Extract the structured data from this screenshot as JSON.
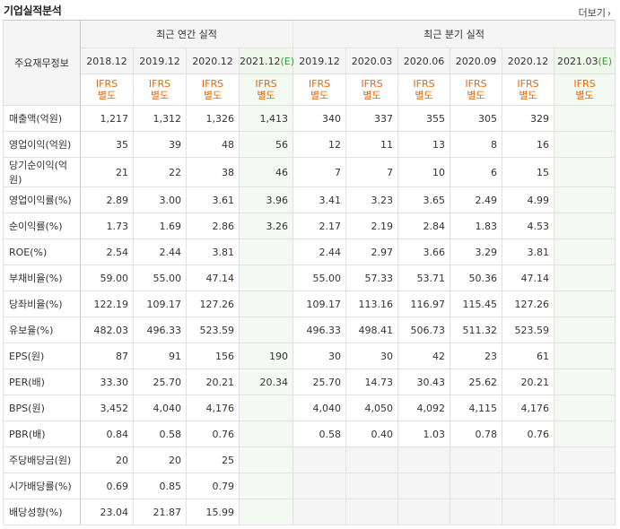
{
  "title": "기업실적분석",
  "more_label": "더보기",
  "header": {
    "row_label": "주요재무정보",
    "annual_group": "최근 연간 실적",
    "quarter_group": "최근 분기 실적",
    "annual_periods": [
      "2018.12",
      "2019.12",
      "2020.12",
      "2021.12"
    ],
    "forecast_tag": "(E)",
    "quarter_periods": [
      "2019.12",
      "2020.03",
      "2020.06",
      "2020.09",
      "2020.12",
      "2021.03"
    ],
    "acct_top": "IFRS",
    "acct_bottom": "별도"
  },
  "rows": [
    {
      "label": "매출액(억원)",
      "annual": [
        "1,217",
        "1,312",
        "1,326",
        "1,413"
      ],
      "quarter": [
        "340",
        "337",
        "355",
        "305",
        "329",
        ""
      ]
    },
    {
      "label": "영업이익(억원)",
      "annual": [
        "35",
        "39",
        "48",
        "56"
      ],
      "quarter": [
        "12",
        "11",
        "13",
        "8",
        "16",
        ""
      ]
    },
    {
      "label": "당기순이익(억원)",
      "annual": [
        "21",
        "22",
        "38",
        "46"
      ],
      "quarter": [
        "7",
        "7",
        "10",
        "6",
        "15",
        ""
      ]
    },
    {
      "label": "영업이익률(%)",
      "annual": [
        "2.89",
        "3.00",
        "3.61",
        "3.96"
      ],
      "quarter": [
        "3.41",
        "3.23",
        "3.65",
        "2.49",
        "4.99",
        ""
      ]
    },
    {
      "label": "순이익률(%)",
      "annual": [
        "1.73",
        "1.69",
        "2.86",
        "3.26"
      ],
      "quarter": [
        "2.17",
        "2.19",
        "2.84",
        "1.83",
        "4.53",
        ""
      ]
    },
    {
      "label": "ROE(%)",
      "annual": [
        "2.54",
        "2.44",
        "3.81",
        ""
      ],
      "quarter": [
        "2.44",
        "2.97",
        "3.66",
        "3.29",
        "3.81",
        ""
      ]
    },
    {
      "label": "부채비율(%)",
      "annual": [
        "59.00",
        "55.00",
        "47.14",
        ""
      ],
      "quarter": [
        "55.00",
        "57.33",
        "53.71",
        "50.36",
        "47.14",
        ""
      ]
    },
    {
      "label": "당좌비율(%)",
      "annual": [
        "122.19",
        "109.17",
        "127.26",
        ""
      ],
      "quarter": [
        "109.17",
        "113.16",
        "116.97",
        "115.45",
        "127.26",
        ""
      ]
    },
    {
      "label": "유보율(%)",
      "annual": [
        "482.03",
        "496.33",
        "523.59",
        ""
      ],
      "quarter": [
        "496.33",
        "498.41",
        "506.73",
        "511.32",
        "523.59",
        ""
      ]
    },
    {
      "label": "EPS(원)",
      "annual": [
        "87",
        "91",
        "156",
        "190"
      ],
      "quarter": [
        "30",
        "30",
        "42",
        "23",
        "61",
        ""
      ]
    },
    {
      "label": "PER(배)",
      "annual": [
        "33.30",
        "25.70",
        "20.21",
        "20.34"
      ],
      "quarter": [
        "25.70",
        "14.73",
        "30.43",
        "25.62",
        "20.21",
        ""
      ]
    },
    {
      "label": "BPS(원)",
      "annual": [
        "3,452",
        "4,040",
        "4,176",
        ""
      ],
      "quarter": [
        "4,040",
        "4,050",
        "4,092",
        "4,115",
        "4,176",
        ""
      ]
    },
    {
      "label": "PBR(배)",
      "annual": [
        "0.84",
        "0.58",
        "0.76",
        ""
      ],
      "quarter": [
        "0.58",
        "0.40",
        "1.03",
        "0.78",
        "0.76",
        ""
      ]
    },
    {
      "label": "주당배당금(원)",
      "annual": [
        "20",
        "20",
        "25",
        ""
      ],
      "quarter": [
        "",
        "",
        "",
        "",
        "",
        ""
      ]
    },
    {
      "label": "시가배당률(%)",
      "annual": [
        "0.69",
        "0.85",
        "0.79",
        ""
      ],
      "quarter": [
        "",
        "",
        "",
        "",
        "",
        ""
      ]
    },
    {
      "label": "배당성향(%)",
      "annual": [
        "23.04",
        "21.87",
        "15.99",
        ""
      ],
      "quarter": [
        "",
        "",
        "",
        "",
        "",
        ""
      ]
    }
  ],
  "section_starts": [
    0,
    3,
    6,
    9,
    13
  ],
  "grey_quarter_rows": [
    13,
    14,
    15
  ],
  "colors": {
    "accent": "#e8680c",
    "forecast_bg": "#f3faf1",
    "forecast_tag": "#3c9a3c"
  }
}
